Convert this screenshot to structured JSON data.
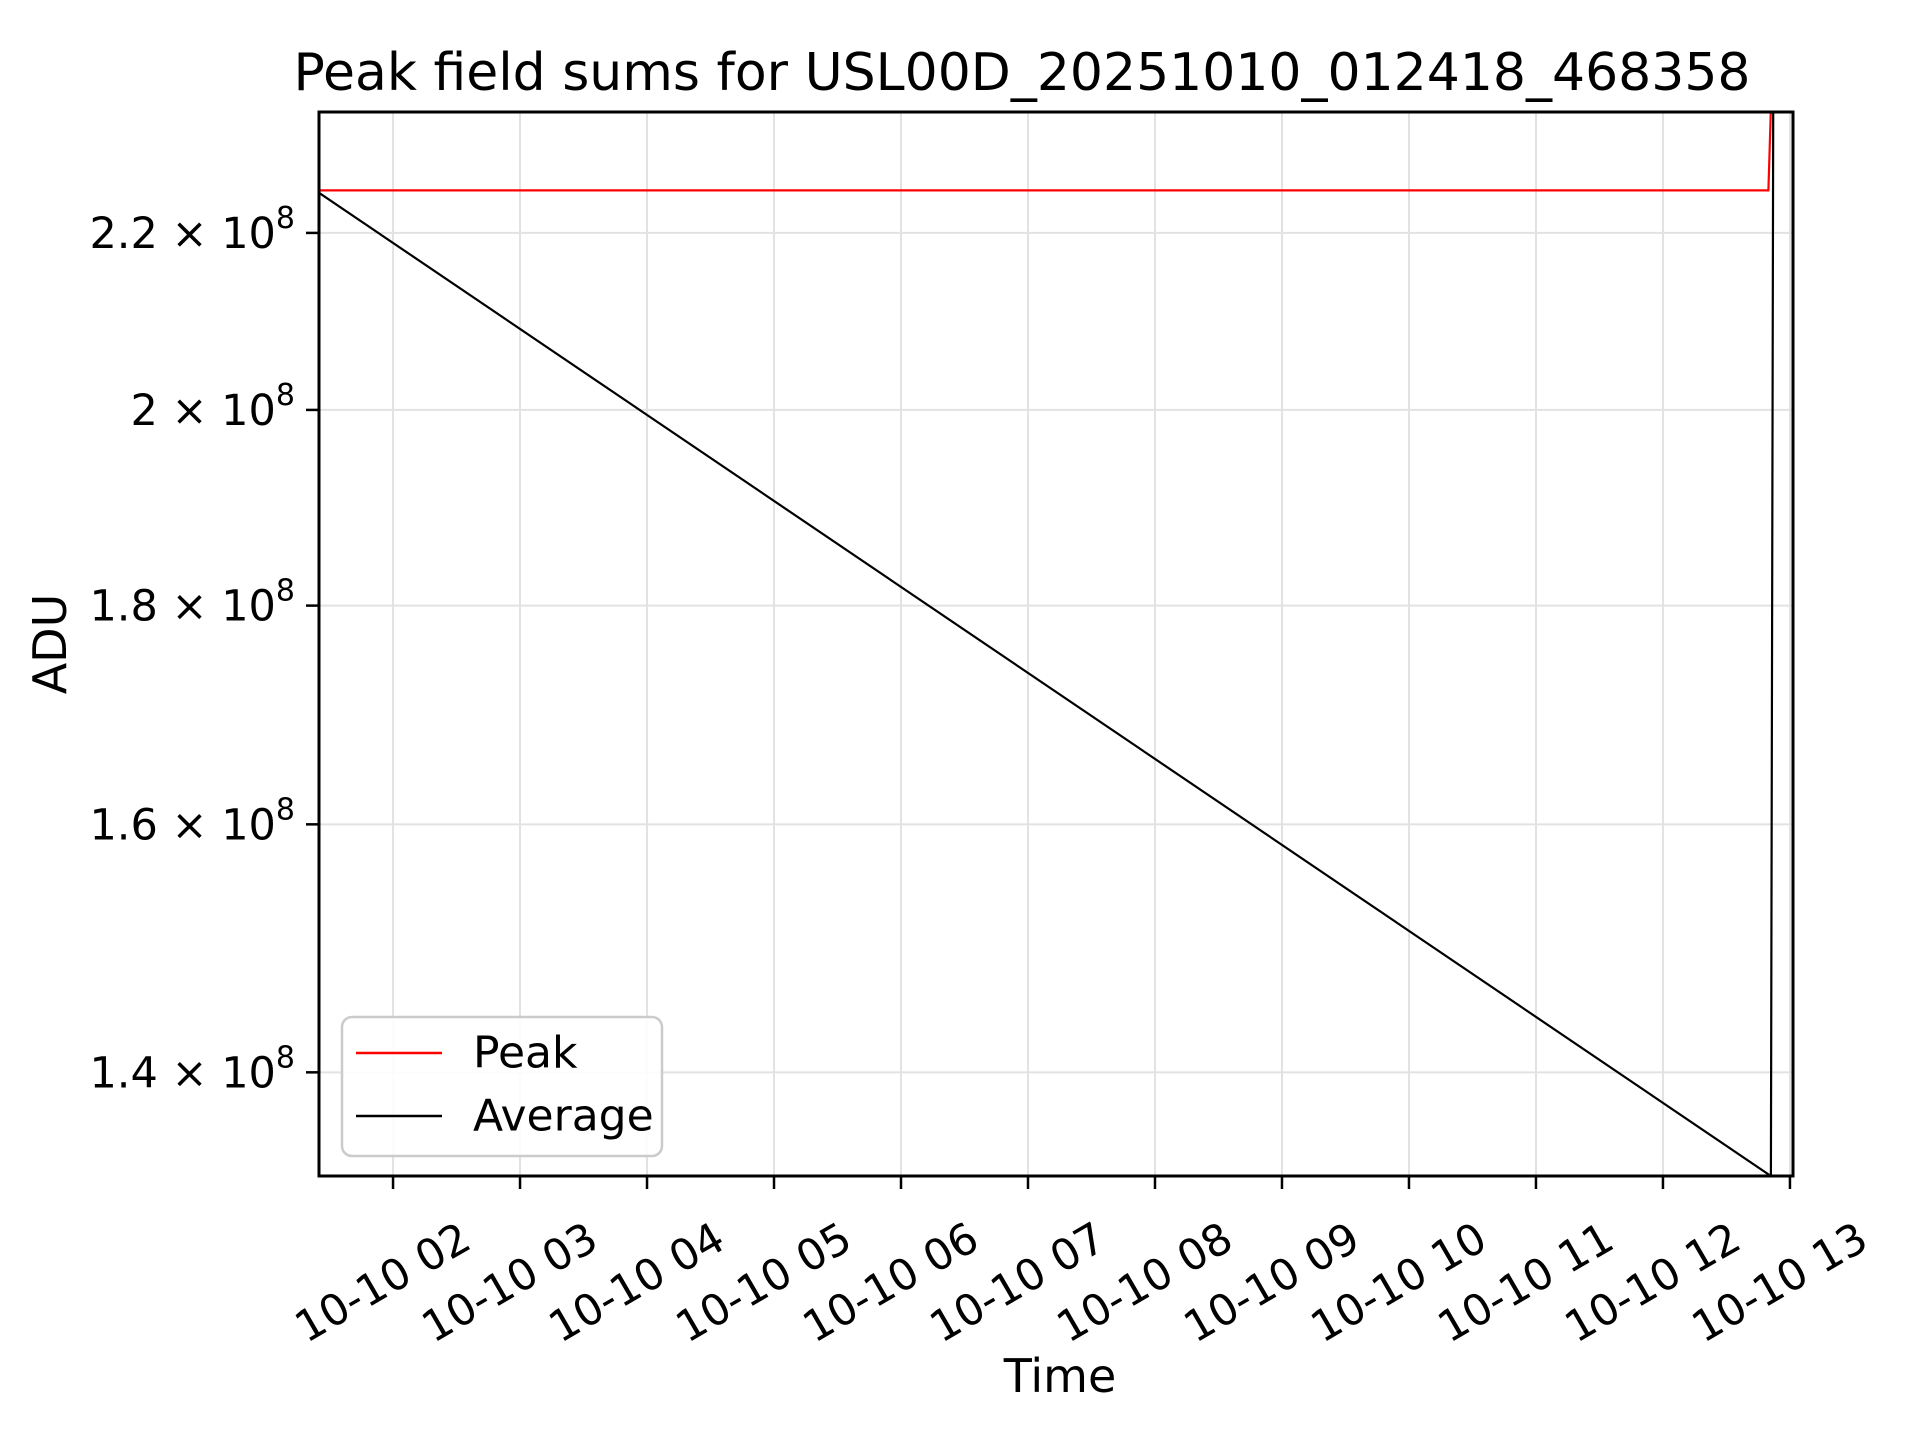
{
  "chart_data": {
    "type": "line",
    "title": "Peak field sums for USL00D_20251010_012418_468358",
    "xlabel": "Time",
    "ylabel": "ADU",
    "x_axis": {
      "kind": "time",
      "date": "10-10",
      "xlim_hours": [
        1.417,
        13.024
      ],
      "tick_rotation_deg": 30,
      "ticks": [
        {
          "hour": 2,
          "label": "10-10 02"
        },
        {
          "hour": 3,
          "label": "10-10 03"
        },
        {
          "hour": 4,
          "label": "10-10 04"
        },
        {
          "hour": 5,
          "label": "10-10 05"
        },
        {
          "hour": 6,
          "label": "10-10 06"
        },
        {
          "hour": 7,
          "label": "10-10 07"
        },
        {
          "hour": 8,
          "label": "10-10 08"
        },
        {
          "hour": 9,
          "label": "10-10 09"
        },
        {
          "hour": 10,
          "label": "10-10 10"
        },
        {
          "hour": 11,
          "label": "10-10 11"
        },
        {
          "hour": 12,
          "label": "10-10 12"
        },
        {
          "hour": 13,
          "label": "10-10 13"
        }
      ]
    },
    "y_axis": {
      "scale": "log",
      "ylim": [
        132400000,
        234800000
      ],
      "ticks": [
        {
          "value": 220000000,
          "text": "2.2 × 10",
          "sup": "8"
        },
        {
          "value": 200000000,
          "text": "2 × 10",
          "sup": "8"
        },
        {
          "value": 180000000,
          "text": "1.8 × 10",
          "sup": "8"
        },
        {
          "value": 160000000,
          "text": "1.6 × 10",
          "sup": "8"
        },
        {
          "value": 140000000,
          "text": "1.4 × 10",
          "sup": "8"
        }
      ]
    },
    "grid": {
      "show": true,
      "color": "#e2e2e2"
    },
    "legend": {
      "position": "lower left",
      "border_color": "#cbcbcb",
      "background": "#ffffff"
    },
    "series": [
      {
        "name": "Peak",
        "color": "#ff0000",
        "points_hour_value": [
          [
            1.417,
            225100000
          ],
          [
            12.83,
            225100000
          ],
          [
            12.87,
            246000000
          ]
        ]
      },
      {
        "name": "Average",
        "color": "#000000",
        "points_hour_value": [
          [
            1.417,
            224800000
          ],
          [
            12.85,
            132400000
          ],
          [
            12.87,
            246000000
          ]
        ]
      }
    ]
  }
}
